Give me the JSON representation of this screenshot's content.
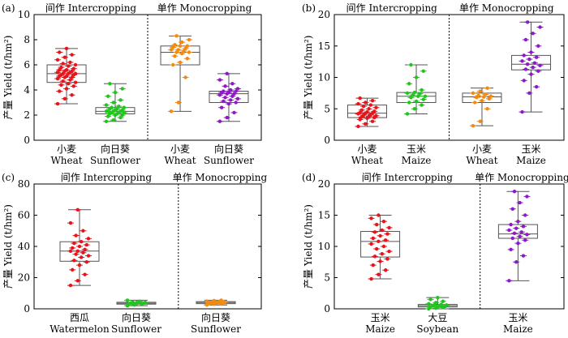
{
  "chart_data": [
    {
      "panel_label": "(a)",
      "type": "box",
      "ylabel": "产量 Yield (t/hm²)",
      "ylim": [
        0,
        10
      ],
      "yticks": [
        0,
        2,
        4,
        6,
        8,
        10
      ],
      "divider_after": 2,
      "groups": [
        "间作 Intercropping",
        "单作 Monocropping"
      ],
      "categories": [
        {
          "zh": "小麦",
          "en": "Wheat",
          "color": "#e8141c",
          "min": 2.9,
          "q1": 4.6,
          "median": 5.3,
          "q3": 6.0,
          "max": 7.3,
          "points": [
            2.9,
            3.3,
            3.6,
            3.9,
            4.1,
            4.3,
            4.4,
            4.5,
            4.6,
            4.7,
            4.8,
            4.9,
            5.0,
            5.0,
            5.1,
            5.1,
            5.2,
            5.2,
            5.3,
            5.3,
            5.3,
            5.4,
            5.4,
            5.5,
            5.5,
            5.6,
            5.6,
            5.7,
            5.8,
            5.9,
            6.0,
            6.1,
            6.2,
            6.4,
            6.6,
            6.8,
            7.0,
            7.3
          ]
        },
        {
          "zh": "向日葵",
          "en": "Sunflower",
          "color": "#22c51f",
          "min": 1.5,
          "q1": 2.1,
          "median": 2.3,
          "q3": 2.6,
          "max": 4.5,
          "points": [
            1.5,
            1.6,
            1.8,
            1.9,
            2.0,
            2.0,
            2.1,
            2.1,
            2.2,
            2.2,
            2.2,
            2.3,
            2.3,
            2.3,
            2.3,
            2.4,
            2.4,
            2.5,
            2.5,
            2.6,
            2.6,
            2.7,
            2.8,
            3.0,
            3.2,
            3.5,
            3.8,
            4.1,
            4.5
          ]
        },
        {
          "zh": "小麦",
          "en": "Wheat",
          "color": "#f28a12",
          "min": 2.3,
          "q1": 6.0,
          "median": 7.0,
          "q3": 7.5,
          "max": 8.3,
          "points": [
            2.3,
            3.0,
            5.0,
            6.0,
            6.2,
            6.5,
            6.7,
            6.9,
            7.0,
            7.0,
            7.1,
            7.2,
            7.2,
            7.3,
            7.4,
            7.5,
            7.5,
            7.6,
            7.8,
            8.0,
            8.3
          ]
        },
        {
          "zh": "向日葵",
          "en": "Sunflower",
          "color": "#8d1ac8",
          "min": 1.5,
          "q1": 3.0,
          "median": 3.7,
          "q3": 3.9,
          "max": 5.3,
          "points": [
            1.5,
            1.8,
            2.2,
            2.6,
            2.9,
            3.0,
            3.1,
            3.2,
            3.3,
            3.4,
            3.5,
            3.6,
            3.7,
            3.7,
            3.8,
            3.8,
            3.9,
            3.9,
            4.0,
            4.1,
            4.3,
            4.5,
            4.8,
            5.3
          ]
        }
      ]
    },
    {
      "panel_label": "(b)",
      "type": "box",
      "ylabel": "产量 Yield (t/hm²)",
      "ylim": [
        0,
        20
      ],
      "yticks": [
        0,
        5,
        10,
        15,
        20
      ],
      "divider_after": 2,
      "groups": [
        "间作 Intercropping",
        "单作 Monocropping"
      ],
      "categories": [
        {
          "zh": "小麦",
          "en": "Wheat",
          "color": "#e8141c",
          "min": 2.2,
          "q1": 3.6,
          "median": 4.3,
          "q3": 5.6,
          "max": 6.7,
          "points": [
            2.2,
            2.6,
            3.0,
            3.3,
            3.5,
            3.6,
            3.7,
            3.8,
            3.9,
            4.0,
            4.1,
            4.2,
            4.3,
            4.3,
            4.4,
            4.5,
            4.6,
            4.8,
            5.0,
            5.2,
            5.4,
            5.6,
            5.8,
            6.0,
            6.3,
            6.7
          ]
        },
        {
          "zh": "玉米",
          "en": "Maize",
          "color": "#22c51f",
          "min": 4.2,
          "q1": 6.0,
          "median": 7.0,
          "q3": 7.6,
          "max": 12.0,
          "points": [
            4.2,
            5.0,
            5.6,
            6.0,
            6.2,
            6.5,
            6.8,
            7.0,
            7.0,
            7.2,
            7.4,
            7.5,
            7.6,
            8.0,
            9.0,
            10.0,
            11.0,
            12.0
          ]
        },
        {
          "zh": "小麦",
          "en": "Wheat",
          "color": "#f28a12",
          "min": 2.3,
          "q1": 6.0,
          "median": 6.9,
          "q3": 7.5,
          "max": 8.3,
          "points": [
            2.3,
            3.0,
            5.0,
            6.0,
            6.3,
            6.6,
            6.8,
            6.9,
            7.0,
            7.1,
            7.3,
            7.5,
            7.8,
            8.3
          ]
        },
        {
          "zh": "玉米",
          "en": "Maize",
          "color": "#8d1ac8",
          "min": 4.5,
          "q1": 11.2,
          "median": 12.1,
          "q3": 13.5,
          "max": 18.8,
          "points": [
            4.5,
            7.5,
            8.5,
            9.5,
            10.5,
            11.0,
            11.3,
            11.6,
            11.9,
            12.1,
            12.3,
            12.6,
            12.9,
            13.2,
            13.5,
            14.0,
            15.0,
            16.0,
            17.0,
            18.0,
            18.8
          ]
        }
      ]
    },
    {
      "panel_label": "(c)",
      "type": "box",
      "ylabel": "产量 Yield (t/hm²)",
      "ylim": [
        0,
        80
      ],
      "yticks": [
        0,
        20,
        40,
        60,
        80
      ],
      "divider_after": 2,
      "groups": [
        "间作 Intercropping",
        "单作 Monocropping"
      ],
      "categories": [
        {
          "zh": "西瓜",
          "en": "Watermelon",
          "color": "#e8141c",
          "min": 15.0,
          "q1": 30.5,
          "median": 37.0,
          "q3": 43.0,
          "max": 63.5,
          "points": [
            15.0,
            18.0,
            22.0,
            25.0,
            28.0,
            30.0,
            31.0,
            33.0,
            34.0,
            35.0,
            36.0,
            37.0,
            37.0,
            38.0,
            39.0,
            40.0,
            41.0,
            42.0,
            43.0,
            45.0,
            47.0,
            50.0,
            55.0,
            63.5
          ]
        },
        {
          "zh": "向日葵",
          "en": "Sunflower",
          "color": "#22c51f",
          "min": 2.0,
          "q1": 3.0,
          "median": 3.6,
          "q3": 4.2,
          "max": 5.5,
          "points": [
            2.0,
            2.5,
            3.0,
            3.2,
            3.4,
            3.6,
            3.7,
            3.9,
            4.1,
            4.3,
            4.8,
            5.5
          ]
        },
        {
          "zh": "向日葵",
          "en": "Sunflower",
          "color": "#f28a12",
          "min": 2.5,
          "q1": 3.3,
          "median": 4.0,
          "q3": 4.6,
          "max": 5.5,
          "points": [
            2.5,
            3.0,
            3.3,
            3.5,
            3.7,
            3.9,
            4.0,
            4.1,
            4.2,
            4.4,
            4.6,
            4.9,
            5.2,
            5.5
          ]
        }
      ]
    },
    {
      "panel_label": "(d)",
      "type": "box",
      "ylabel": "产量 Yield (t/hm²)",
      "ylim": [
        0,
        20
      ],
      "yticks": [
        0,
        5,
        10,
        15,
        20
      ],
      "divider_after": 2,
      "groups": [
        "间作 Intercropping",
        "单作 Monocropping"
      ],
      "categories": [
        {
          "zh": "玉米",
          "en": "Maize",
          "color": "#e8141c",
          "min": 4.8,
          "q1": 8.3,
          "median": 10.8,
          "q3": 12.4,
          "max": 15.0,
          "points": [
            4.8,
            5.5,
            6.2,
            7.0,
            7.6,
            8.0,
            8.4,
            8.8,
            9.2,
            9.6,
            10.0,
            10.4,
            10.8,
            11.0,
            11.3,
            11.7,
            12.0,
            12.3,
            12.6,
            13.0,
            13.5,
            14.0,
            14.5,
            15.0
          ]
        },
        {
          "zh": "大豆",
          "en": "Soybean",
          "color": "#22c51f",
          "min": 0.0,
          "q1": 0.3,
          "median": 0.5,
          "q3": 0.7,
          "max": 1.8,
          "points": [
            0.0,
            0.1,
            0.2,
            0.3,
            0.3,
            0.4,
            0.5,
            0.5,
            0.6,
            0.6,
            0.7,
            0.8,
            1.0,
            1.2,
            1.5,
            1.8
          ]
        },
        {
          "zh": "玉米",
          "en": "Maize",
          "color": "#8d1ac8",
          "min": 4.5,
          "q1": 11.3,
          "median": 12.0,
          "q3": 13.5,
          "max": 18.8,
          "points": [
            4.5,
            7.5,
            8.5,
            9.5,
            10.5,
            11.0,
            11.3,
            11.6,
            11.9,
            12.1,
            12.3,
            12.6,
            12.9,
            13.2,
            13.5,
            14.0,
            15.0,
            16.0,
            17.0,
            18.0,
            18.8
          ]
        }
      ]
    }
  ]
}
